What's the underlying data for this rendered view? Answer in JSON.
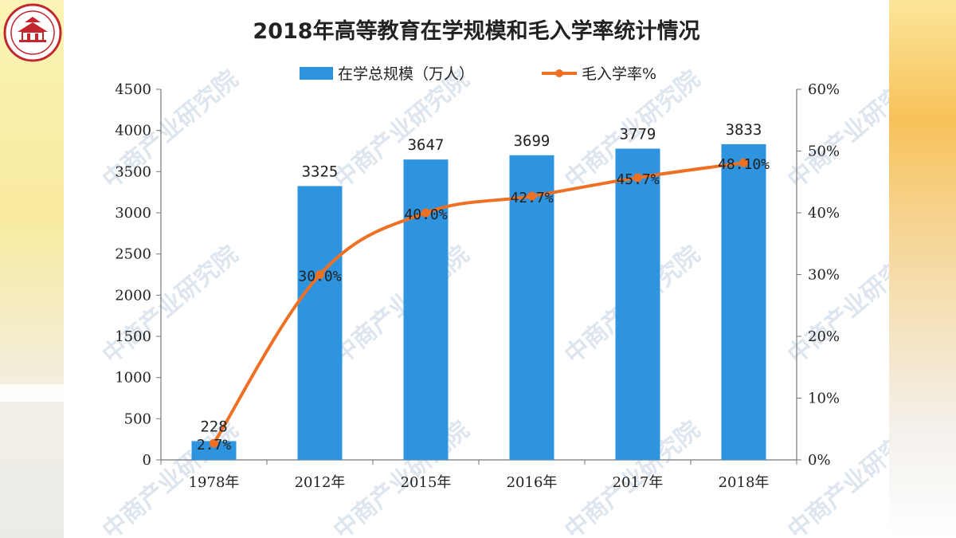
{
  "chart_data": {
    "type": "bar",
    "title": "2018年高等教育在学规模和毛入学率统计情况",
    "categories": [
      "1978年",
      "2012年",
      "2015年",
      "2016年",
      "2017年",
      "2018年"
    ],
    "series": [
      {
        "name": "在学总规模（万人）",
        "type": "bar",
        "axis": "left",
        "values": [
          228,
          3325,
          3647,
          3699,
          3779,
          3833
        ],
        "labels": [
          "228",
          "3325",
          "3647",
          "3699",
          "3779",
          "3833"
        ],
        "color": "#2f94e0"
      },
      {
        "name": "毛入学率%",
        "type": "line",
        "axis": "right",
        "values": [
          2.7,
          30.0,
          40.0,
          42.7,
          45.7,
          48.1
        ],
        "labels": [
          "2.7%",
          "30.0%",
          "40.0%",
          "42.7%",
          "45.7%",
          "48.10%"
        ],
        "color": "#ee7023"
      }
    ],
    "y_left": {
      "min": 0,
      "max": 4500,
      "step": 500,
      "ticks": [
        "0",
        "500",
        "1000",
        "1500",
        "2000",
        "2500",
        "3000",
        "3500",
        "4000",
        "4500"
      ]
    },
    "y_right": {
      "min": 0,
      "max": 60,
      "step": 10,
      "ticks": [
        "0%",
        "10%",
        "20%",
        "30%",
        "40%",
        "50%",
        "60%"
      ]
    },
    "legend_position": "top",
    "grid": false,
    "watermark": "中商产业研究院"
  }
}
